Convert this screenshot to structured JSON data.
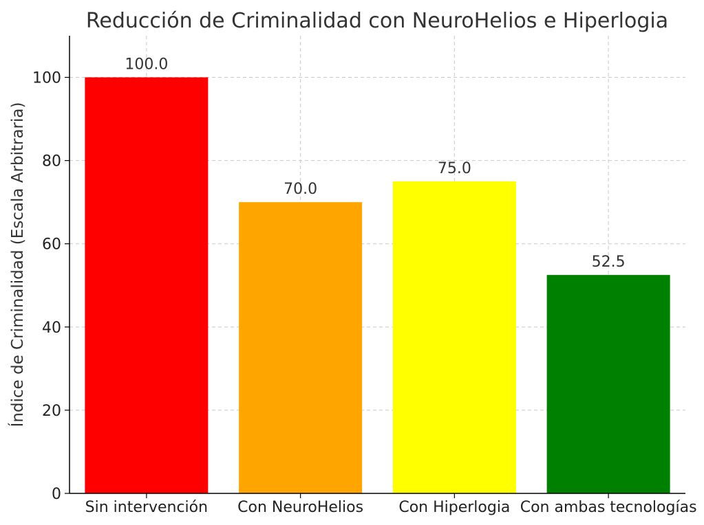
{
  "chart_data": {
    "type": "bar",
    "title": "Reducción de Criminalidad con NeuroHelios e Hiperlogia",
    "xlabel": "",
    "ylabel": "Índice de Criminalidad (Escala Arbitraria)",
    "categories": [
      "Sin intervención",
      "Con NeuroHelios",
      "Con Hiperlogia",
      "Con ambas tecnologías"
    ],
    "values": [
      100.0,
      70.0,
      75.0,
      52.5
    ],
    "value_labels": [
      "100.0",
      "70.0",
      "75.0",
      "52.5"
    ],
    "colors": [
      "#ff0000",
      "#ffa500",
      "#ffff00",
      "#008000"
    ],
    "ylim": [
      0,
      110
    ],
    "yticks": [
      0,
      20,
      40,
      60,
      80,
      100
    ],
    "ytick_labels": [
      "0",
      "20",
      "40",
      "60",
      "80",
      "100"
    ],
    "grid": true
  }
}
